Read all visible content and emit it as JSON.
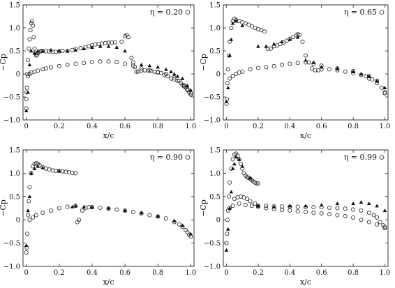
{
  "chart_data": [
    {
      "type": "scatter",
      "panel": "top-left",
      "title": "η = 0.20",
      "xlabel": "x/c",
      "ylabel": "−Cp",
      "xlim": [
        -0.02,
        1.02
      ],
      "ylim": [
        1.5,
        -1.0
      ],
      "y_inverted": true,
      "xticks": [
        "0",
        "0.2",
        "0.4",
        "0.6",
        "0.8",
        "1.0"
      ],
      "yticks": [
        "−1.0",
        "−0.5",
        "0",
        "0.5",
        "1.0",
        "1.5"
      ],
      "grid": false,
      "legend": "none; marker 'o' drawn after the η label",
      "series": [
        {
          "marker": "circle-open",
          "x": [
            0.0,
            0.0,
            0.002,
            0.004,
            0.006,
            0.01,
            0.015,
            0.02,
            0.025,
            0.03,
            0.035,
            0.04,
            0.045,
            0.05,
            0.055,
            0.06,
            0.065,
            0.07,
            0.08,
            0.09,
            0.1,
            0.12,
            0.14,
            0.16,
            0.18,
            0.2,
            0.22,
            0.25,
            0.28,
            0.3,
            0.33,
            0.36,
            0.38,
            0.4,
            0.42,
            0.44,
            0.46,
            0.48,
            0.5,
            0.52,
            0.54,
            0.58,
            0.6,
            0.61,
            0.62,
            0.64,
            0.65,
            0.66,
            0.67,
            0.68,
            0.7,
            0.72,
            0.74,
            0.76,
            0.78,
            0.8,
            0.82,
            0.84,
            0.86,
            0.88,
            0.9,
            0.92,
            0.94,
            0.95,
            0.96,
            0.97,
            0.98,
            0.99,
            1.0,
            0.01,
            0.02,
            0.03,
            0.05,
            0.07,
            0.1,
            0.12,
            0.15,
            0.2,
            0.25,
            0.3,
            0.35,
            0.4,
            0.45,
            0.5,
            0.55,
            0.6,
            0.65,
            0.7,
            0.75,
            0.8,
            0.85,
            0.9,
            0.93,
            0.96,
            0.98,
            1.0
          ],
          "y": [
            -0.75,
            -0.55,
            -0.4,
            -0.3,
            0.0,
            0.3,
            0.55,
            0.75,
            0.95,
            1.1,
            1.15,
            1.05,
            0.8,
            0.55,
            0.45,
            0.4,
            0.42,
            0.45,
            0.48,
            0.5,
            0.5,
            0.49,
            0.49,
            0.48,
            0.48,
            0.49,
            0.5,
            0.5,
            0.52,
            0.54,
            0.56,
            0.58,
            0.6,
            0.62,
            0.64,
            0.65,
            0.66,
            0.67,
            0.68,
            0.68,
            0.69,
            0.7,
            0.82,
            0.85,
            0.8,
            0.35,
            0.25,
            0.15,
            0.05,
            0.05,
            0.07,
            0.08,
            0.07,
            0.06,
            0.05,
            0.03,
            0.02,
            -0.02,
            -0.05,
            -0.1,
            -0.12,
            -0.15,
            -0.2,
            -0.24,
            -0.27,
            -0.3,
            -0.35,
            -0.4,
            -0.45,
            -0.05,
            0.0,
            0.03,
            0.05,
            0.07,
            0.1,
            0.12,
            0.14,
            0.17,
            0.2,
            0.22,
            0.24,
            0.26,
            0.27,
            0.27,
            0.26,
            0.22,
            0.18,
            0.12,
            0.08,
            0.04,
            0.0,
            -0.08,
            -0.15,
            -0.25,
            -0.33,
            -0.42
          ]
        },
        {
          "marker": "triangle-filled",
          "x": [
            0.0,
            0.01,
            0.02,
            0.03,
            0.05,
            0.07,
            0.1,
            0.15,
            0.2,
            0.25,
            0.3,
            0.35,
            0.4,
            0.45,
            0.5,
            0.55,
            0.6,
            0.7,
            0.75,
            0.8,
            0.85,
            0.88,
            0.9,
            0.92,
            0.95,
            0.98,
            1.0
          ],
          "y": [
            -0.8,
            -0.4,
            0.2,
            0.5,
            0.45,
            0.5,
            0.5,
            0.52,
            0.5,
            0.5,
            0.52,
            0.55,
            0.58,
            0.6,
            0.6,
            0.58,
            0.5,
            0.2,
            0.18,
            0.15,
            0.1,
            0.05,
            0.0,
            -0.05,
            -0.1,
            -0.25,
            -0.35
          ]
        }
      ]
    },
    {
      "type": "scatter",
      "panel": "top-right",
      "title": "η = 0.65",
      "xlabel": "x/c",
      "ylabel": "−Cp",
      "xlim": [
        -0.02,
        1.02
      ],
      "ylim": [
        1.5,
        -1.0
      ],
      "y_inverted": true,
      "xticks": [
        "0",
        "0.2",
        "0.4",
        "0.6",
        "0.8",
        "1.0"
      ],
      "yticks": [
        "−1.0",
        "−0.5",
        "0",
        "0.5",
        "1.0",
        "1.5"
      ],
      "grid": false,
      "legend": "none; marker 'o' drawn after the η label",
      "series": [
        {
          "marker": "circle-open",
          "x": [
            0.0,
            0.003,
            0.006,
            0.01,
            0.015,
            0.02,
            0.03,
            0.04,
            0.05,
            0.06,
            0.08,
            0.1,
            0.12,
            0.14,
            0.16,
            0.18,
            0.2,
            0.22,
            0.24,
            0.26,
            0.28,
            0.3,
            0.32,
            0.34,
            0.36,
            0.38,
            0.4,
            0.42,
            0.44,
            0.45,
            0.46,
            0.48,
            0.5,
            0.52,
            0.54,
            0.56,
            0.58,
            0.6,
            0.65,
            0.7,
            0.75,
            0.8,
            0.85,
            0.88,
            0.9,
            0.92,
            0.95,
            0.98,
            1.0,
            0.02,
            0.04,
            0.06,
            0.08,
            0.1,
            0.15,
            0.2,
            0.25,
            0.3,
            0.35,
            0.4,
            0.45,
            0.5,
            0.55,
            0.6,
            0.7,
            0.8,
            0.9,
            0.95,
            1.0
          ],
          "y": [
            -0.65,
            -0.55,
            -0.2,
            0.1,
            0.4,
            0.7,
            1.0,
            1.15,
            1.2,
            1.17,
            1.15,
            1.12,
            1.1,
            1.07,
            1.03,
            1.0,
            0.97,
            0.95,
            0.92,
            0.55,
            0.55,
            0.6,
            0.62,
            0.65,
            0.68,
            0.72,
            0.76,
            0.8,
            0.84,
            0.86,
            0.85,
            0.7,
            0.4,
            0.25,
            0.12,
            0.08,
            0.08,
            0.1,
            0.1,
            0.08,
            0.05,
            0.02,
            -0.02,
            -0.05,
            -0.1,
            -0.12,
            -0.2,
            -0.3,
            -0.42,
            -0.1,
            -0.05,
            0.0,
            0.03,
            0.05,
            0.1,
            0.13,
            0.15,
            0.17,
            0.2,
            0.22,
            0.24,
            0.25,
            0.22,
            0.18,
            0.12,
            0.06,
            -0.05,
            -0.15,
            -0.4
          ]
        },
        {
          "marker": "triangle-filled",
          "x": [
            0.0,
            0.01,
            0.02,
            0.03,
            0.04,
            0.06,
            0.1,
            0.2,
            0.25,
            0.3,
            0.35,
            0.4,
            0.45,
            0.5,
            0.55,
            0.6,
            0.7,
            0.8,
            0.85,
            0.9,
            0.95,
            1.0
          ],
          "y": [
            -0.6,
            -0.3,
            0.4,
            0.75,
            1.1,
            1.15,
            1.05,
            0.6,
            0.6,
            0.65,
            0.7,
            0.75,
            0.8,
            0.3,
            0.25,
            0.15,
            0.12,
            0.05,
            0.0,
            -0.05,
            -0.15,
            -0.3
          ]
        }
      ]
    },
    {
      "type": "scatter",
      "panel": "bottom-left",
      "title": "η = 0.90",
      "xlabel": "x/c",
      "ylabel": "−Cp",
      "xlim": [
        -0.02,
        1.02
      ],
      "ylim": [
        1.5,
        -1.0
      ],
      "y_inverted": true,
      "xticks": [
        "0",
        "0.2",
        "0.4",
        "0.6",
        "0.8",
        "1.0"
      ],
      "yticks": [
        "−1.0",
        "−0.5",
        "0",
        "0.5",
        "1.0",
        "1.5"
      ],
      "grid": false,
      "legend": "none; marker 'o' drawn after the η label",
      "series": [
        {
          "marker": "circle-open",
          "x": [
            0.0,
            0.003,
            0.006,
            0.01,
            0.015,
            0.02,
            0.03,
            0.04,
            0.05,
            0.06,
            0.07,
            0.08,
            0.1,
            0.12,
            0.14,
            0.16,
            0.18,
            0.2,
            0.22,
            0.24,
            0.26,
            0.28,
            0.3,
            0.31,
            0.32,
            0.34,
            0.36,
            0.38,
            0.4,
            0.45,
            0.5,
            0.55,
            0.6,
            0.65,
            0.7,
            0.75,
            0.8,
            0.85,
            0.9,
            0.93,
            0.95,
            0.97,
            0.98,
            0.99,
            1.0,
            0.02,
            0.04,
            0.06,
            0.1,
            0.15,
            0.2,
            0.25,
            0.3
          ],
          "y": [
            -0.7,
            -0.6,
            -0.3,
            0.1,
            0.4,
            0.7,
            1.0,
            1.15,
            1.2,
            1.22,
            1.2,
            1.17,
            1.13,
            1.1,
            1.08,
            1.06,
            1.05,
            1.05,
            1.04,
            1.03,
            1.02,
            1.01,
            1.0,
            -0.05,
            0.0,
            0.2,
            0.25,
            0.27,
            0.27,
            0.26,
            0.24,
            0.22,
            0.2,
            0.17,
            0.14,
            0.1,
            0.07,
            0.03,
            -0.05,
            -0.1,
            -0.15,
            -0.22,
            -0.27,
            -0.32,
            -0.36,
            0.0,
            0.05,
            0.1,
            0.15,
            0.2,
            0.25,
            0.28,
            0.3
          ]
        },
        {
          "marker": "triangle-filled",
          "x": [
            0.0,
            0.01,
            0.02,
            0.03,
            0.05,
            0.07,
            0.1,
            0.2,
            0.28,
            0.3,
            0.35,
            0.4,
            0.5,
            0.6,
            0.7,
            0.8,
            0.9,
            0.95,
            1.0
          ],
          "y": [
            -0.55,
            0.2,
            0.5,
            1.0,
            1.1,
            1.15,
            1.12,
            1.05,
            0.28,
            0.3,
            0.28,
            0.27,
            0.25,
            0.2,
            0.15,
            0.08,
            -0.02,
            -0.12,
            -0.3
          ]
        }
      ]
    },
    {
      "type": "scatter",
      "panel": "bottom-right",
      "title": "η = 0.99",
      "xlabel": "x/c",
      "ylabel": "−Cp",
      "xlim": [
        -0.02,
        1.02
      ],
      "ylim": [
        1.5,
        -1.0
      ],
      "y_inverted": true,
      "xticks": [
        "0",
        "0.2",
        "0.4",
        "0.6",
        "0.8",
        "1.0"
      ],
      "yticks": [
        "−1.0",
        "−0.5",
        "0",
        "0.5",
        "1.0",
        "1.5"
      ],
      "grid": false,
      "legend": "none; marker 'o' drawn after the η label",
      "series": [
        {
          "marker": "circle-open",
          "x": [
            0.0,
            0.003,
            0.006,
            0.01,
            0.015,
            0.02,
            0.03,
            0.04,
            0.05,
            0.06,
            0.07,
            0.08,
            0.09,
            0.1,
            0.11,
            0.12,
            0.13,
            0.14,
            0.15,
            0.16,
            0.17,
            0.18,
            0.19,
            0.2,
            0.05,
            0.07,
            0.09,
            0.11,
            0.13,
            0.15,
            0.18,
            0.2,
            0.25,
            0.3,
            0.35,
            0.4,
            0.45,
            0.5,
            0.55,
            0.6,
            0.65,
            0.7,
            0.75,
            0.8,
            0.85,
            0.9,
            0.93,
            0.95,
            0.97,
            0.99,
            1.0,
            0.02,
            0.04,
            0.08,
            0.12,
            0.16,
            0.2,
            0.25,
            0.3,
            0.35,
            0.4,
            0.45,
            0.5,
            0.55,
            0.6,
            0.65,
            0.7,
            0.75,
            0.8,
            0.85,
            0.9,
            0.95,
            1.0
          ],
          "y": [
            -0.5,
            -0.3,
            0.0,
            0.2,
            0.5,
            0.8,
            1.1,
            1.3,
            1.4,
            1.42,
            1.38,
            1.3,
            1.2,
            1.1,
            1.0,
            0.95,
            0.92,
            0.9,
            0.88,
            0.85,
            0.82,
            0.8,
            0.78,
            0.78,
            0.45,
            0.48,
            0.5,
            0.48,
            0.45,
            0.4,
            0.35,
            0.3,
            0.3,
            0.29,
            0.29,
            0.28,
            0.28,
            0.27,
            0.27,
            0.27,
            0.26,
            0.25,
            0.24,
            0.22,
            0.2,
            0.15,
            0.1,
            0.05,
            -0.05,
            -0.12,
            -0.18,
            0.25,
            0.3,
            0.35,
            0.32,
            0.3,
            0.28,
            0.25,
            0.23,
            0.21,
            0.2,
            0.18,
            0.17,
            0.15,
            0.14,
            0.12,
            0.1,
            0.08,
            0.05,
            0.0,
            -0.05,
            -0.1,
            -0.15
          ]
        },
        {
          "marker": "triangle-filled",
          "x": [
            0.0,
            0.01,
            0.02,
            0.03,
            0.04,
            0.05,
            0.06,
            0.08,
            0.1,
            0.15,
            0.2,
            0.3,
            0.4,
            0.5,
            0.6,
            0.7,
            0.8,
            0.85,
            0.9,
            0.95,
            1.0
          ],
          "y": [
            -0.65,
            -0.2,
            0.25,
            0.6,
            1.1,
            1.2,
            1.35,
            1.3,
            1.15,
            0.9,
            0.3,
            0.28,
            0.3,
            0.3,
            0.32,
            0.35,
            0.35,
            0.38,
            0.35,
            0.3,
            0.2
          ]
        }
      ]
    }
  ]
}
